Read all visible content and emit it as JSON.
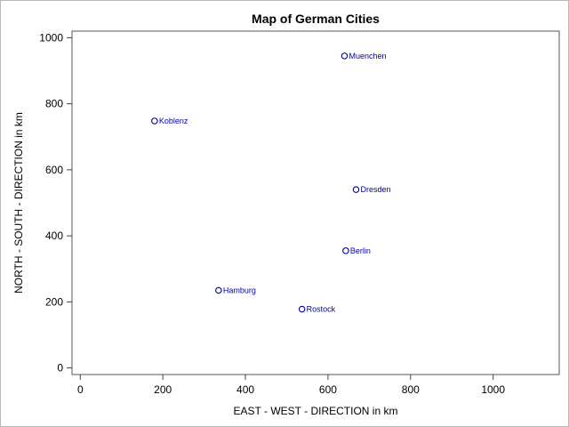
{
  "chart_data": {
    "type": "scatter",
    "title": "Map of German Cities",
    "xlabel": "EAST - WEST - DIRECTION in km",
    "ylabel": "NORTH - SOUTH - DIRECTION in km",
    "xlim": [
      -20,
      1160
    ],
    "ylim": [
      -20,
      1020
    ],
    "xticks": [
      0,
      200,
      400,
      600,
      800,
      1000
    ],
    "yticks": [
      0,
      200,
      400,
      600,
      800,
      1000
    ],
    "xtick_labels": [
      "0",
      "200",
      "400",
      "600",
      "800",
      "1000"
    ],
    "ytick_labels": [
      "0",
      "200",
      "400",
      "600",
      "800",
      "1000"
    ],
    "grid": false,
    "marker": "open-circle",
    "colors": {
      "marker": "#000099",
      "label": "#000099",
      "axis": "#444444"
    },
    "points": [
      {
        "label": "Muenchen",
        "x": 640,
        "y": 945
      },
      {
        "label": "Koblenz",
        "x": 180,
        "y": 748
      },
      {
        "label": "Dresden",
        "x": 668,
        "y": 540
      },
      {
        "label": "Berlin",
        "x": 643,
        "y": 355
      },
      {
        "label": "Hamburg",
        "x": 335,
        "y": 235
      },
      {
        "label": "Rostock",
        "x": 537,
        "y": 178
      }
    ]
  }
}
